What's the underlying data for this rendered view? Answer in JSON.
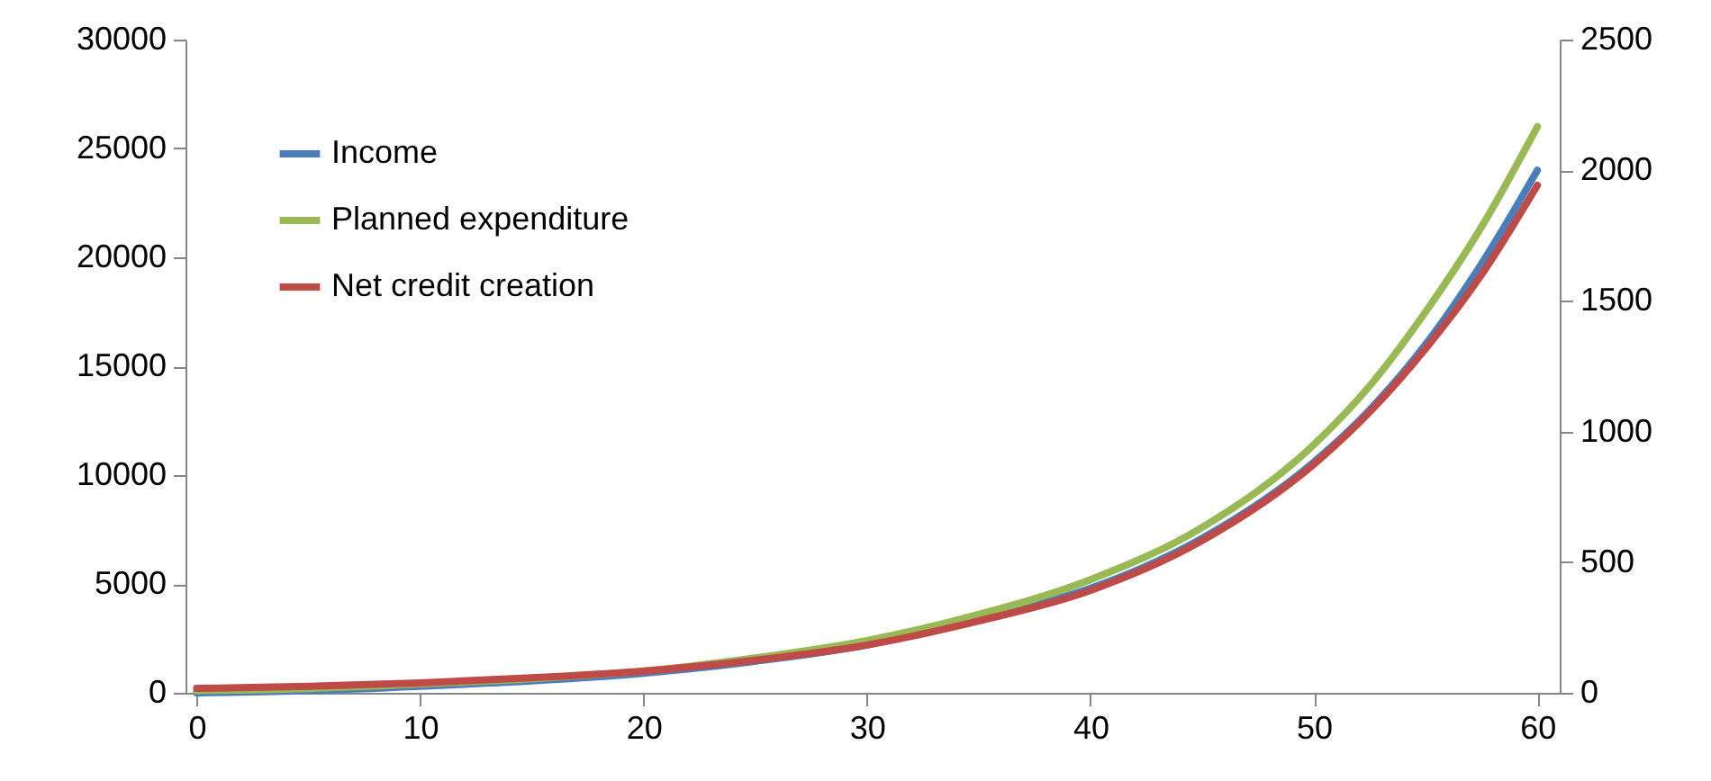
{
  "chart_data": {
    "type": "line",
    "x": [
      0,
      5,
      10,
      15,
      20,
      25,
      30,
      35,
      40,
      45,
      50,
      52.5,
      55,
      57.5,
      60
    ],
    "series": [
      {
        "name": "Income",
        "color": "#4a7ebb",
        "values": [
          0,
          100,
          300,
          550,
          900,
          1450,
          2200,
          3400,
          4800,
          7100,
          10600,
          13000,
          16000,
          19700,
          24000
        ]
      },
      {
        "name": "Planned expenditure",
        "color": "#98b954",
        "values": [
          100,
          200,
          400,
          650,
          1000,
          1600,
          2400,
          3600,
          5200,
          7600,
          11400,
          14100,
          17500,
          21400,
          26000
        ]
      },
      {
        "name": "Net  credit  creation",
        "color": "#be4b48",
        "axis": "y2",
        "values": [
          17,
          25,
          38,
          58,
          83,
          125,
          183,
          275,
          392,
          583,
          875,
          1075,
          1317,
          1600,
          1942
        ]
      }
    ],
    "xlim": [
      -0.5,
      61
    ],
    "xticks": [
      0,
      10,
      20,
      30,
      40,
      50,
      60
    ],
    "ylim": [
      0,
      30000
    ],
    "yticks": [
      0,
      5000,
      10000,
      15000,
      20000,
      25000,
      30000
    ],
    "y2lim": [
      0,
      2500
    ],
    "y2ticks": [
      0,
      500,
      1000,
      1500,
      2000,
      2500
    ],
    "grid": false,
    "legend": "top left",
    "marker": "none",
    "line_style": "solid"
  }
}
